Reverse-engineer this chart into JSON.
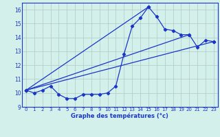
{
  "title": "Graphe des températures (°c)",
  "background_color": "#d4f0eb",
  "grid_color": "#b0c8c4",
  "line_color": "#1a35c8",
  "xlabel_color": "#1a35c8",
  "xlim": [
    -0.5,
    23.5
  ],
  "ylim": [
    9,
    16.5
  ],
  "yticks": [
    9,
    10,
    11,
    12,
    13,
    14,
    15,
    16
  ],
  "xticks": [
    0,
    1,
    2,
    3,
    4,
    5,
    6,
    7,
    8,
    9,
    10,
    11,
    12,
    13,
    14,
    15,
    16,
    17,
    18,
    19,
    20,
    21,
    22,
    23
  ],
  "series1": [
    10.2,
    10.0,
    10.2,
    10.5,
    9.9,
    9.6,
    9.6,
    9.9,
    9.9,
    9.9,
    10.0,
    10.5,
    12.8,
    14.8,
    15.4,
    16.2,
    15.5,
    14.6,
    14.5,
    14.2,
    14.2,
    13.3,
    13.8,
    13.7
  ],
  "series2_x": [
    0,
    15
  ],
  "series2_y": [
    10.2,
    16.2
  ],
  "series3_x": [
    0,
    23
  ],
  "series3_y": [
    10.2,
    13.7
  ],
  "series4_x": [
    0,
    20
  ],
  "series4_y": [
    10.2,
    14.2
  ]
}
